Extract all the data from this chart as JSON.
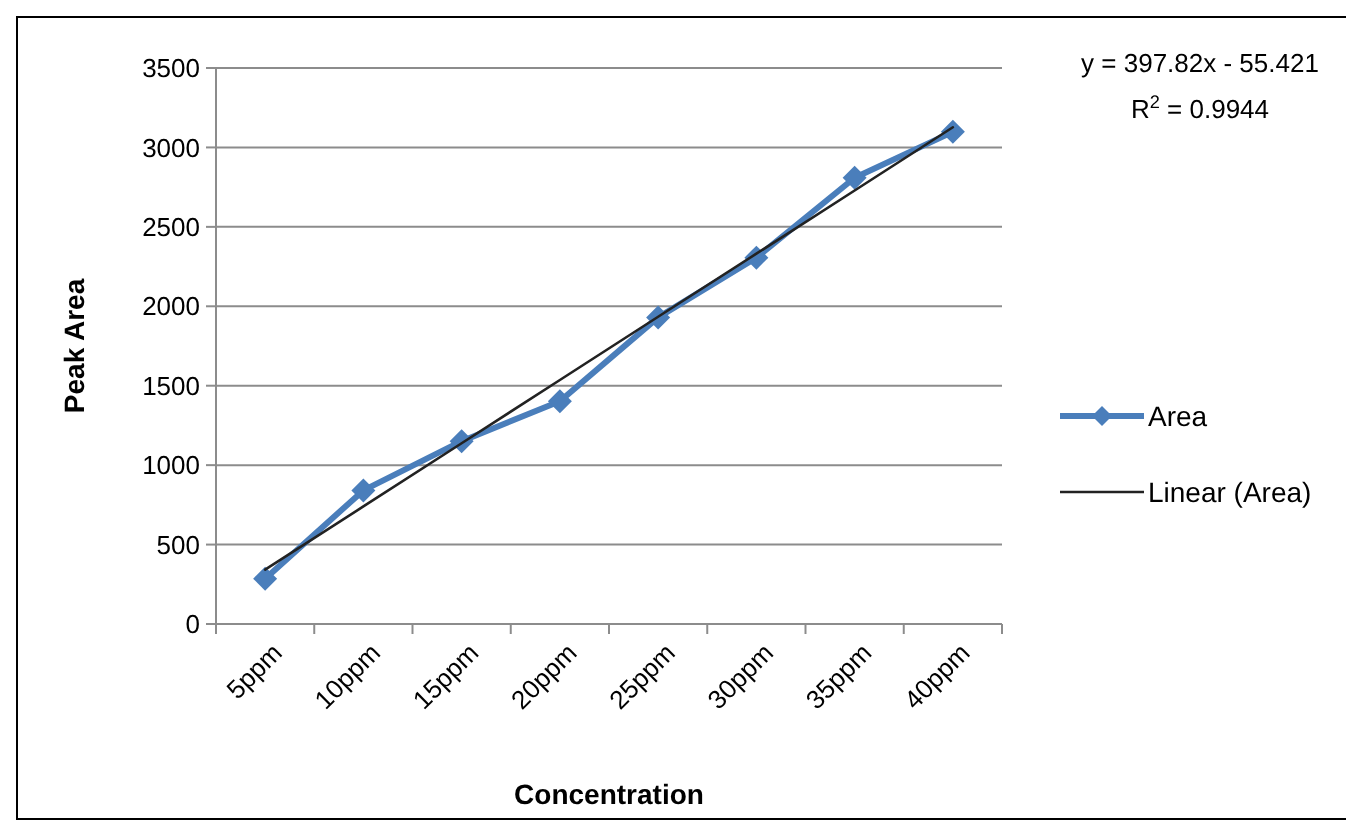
{
  "chart_data": {
    "type": "line",
    "xlabel": "Concentration",
    "ylabel": "Peak Area",
    "categories": [
      "5ppm",
      "10ppm",
      "15ppm",
      "20ppm",
      "25ppm",
      "30ppm",
      "35ppm",
      "40ppm"
    ],
    "series": [
      {
        "name": "Area",
        "color": "#4a7ebb",
        "marker": "diamond",
        "values": [
          285,
          841,
          1151,
          1402,
          1930,
          2306,
          2809,
          3098
        ]
      },
      {
        "name": "Linear (Area)",
        "type": "line",
        "color": "#222222",
        "marker": "none",
        "values": [
          342,
          740,
          1138,
          1536,
          1934,
          2331,
          2729,
          3127
        ]
      }
    ],
    "ylim": [
      0,
      3500
    ],
    "yticks": [
      0,
      500,
      1000,
      1500,
      2000,
      2500,
      3000,
      3500
    ],
    "grid": "y",
    "legend": "right",
    "annotations": [
      "y = 397.82x - 55.421",
      "R$^{2}$ = 0.9944"
    ]
  }
}
